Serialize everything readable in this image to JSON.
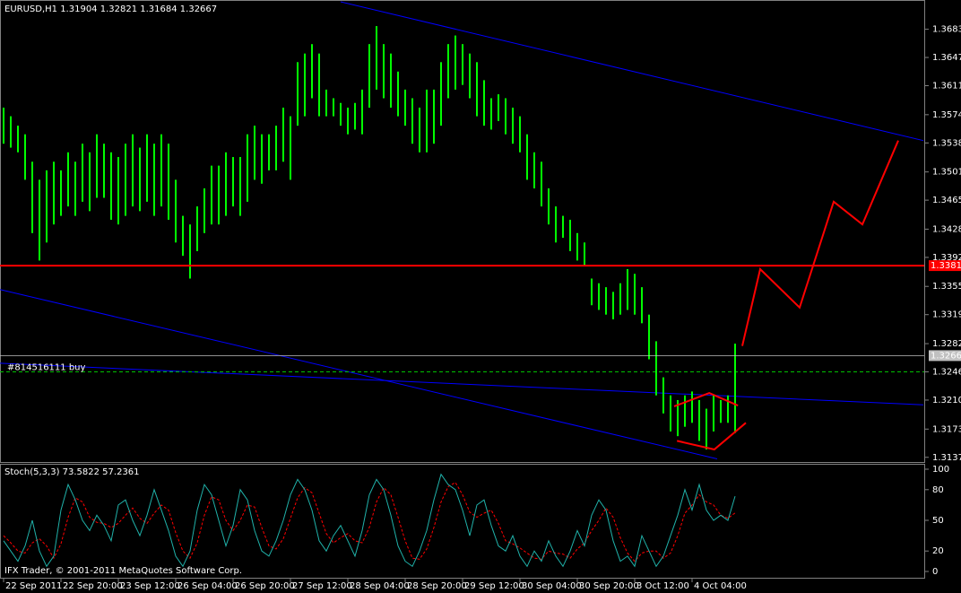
{
  "chart_data": [
    {
      "type": "ohlc",
      "title": "EURUSD,H1  1.31904 1.32821 1.31684 1.32667",
      "color": "#00ff00",
      "categories": [
        "22 Sep 2011",
        null,
        null,
        null,
        null,
        null,
        null,
        null,
        "22 Sep 20:00",
        null,
        null,
        null,
        null,
        null,
        null,
        null,
        "23 Sep 12:00",
        null,
        null,
        null,
        null,
        null,
        null,
        null,
        "26 Sep 04:00",
        null,
        null,
        null,
        null,
        null,
        null,
        null,
        "26 Sep 20:00",
        null,
        null,
        null,
        null,
        null,
        null,
        null,
        "27 Sep 12:00",
        null,
        null,
        null,
        null,
        null,
        null,
        null,
        "28 Sep 04:00",
        null,
        null,
        null,
        null,
        null,
        null,
        null,
        "28 Sep 20:00",
        null,
        null,
        null,
        null,
        null,
        null,
        null,
        "29 Sep 12:00",
        null,
        null,
        null,
        null,
        null,
        null,
        null,
        "30 Sep 04:00",
        null,
        null,
        null,
        null,
        null,
        null,
        null,
        "30 Sep 20:00",
        null,
        null,
        null,
        null,
        null,
        null,
        null,
        "3 Oct 12:00",
        null,
        null,
        null,
        null,
        null,
        null,
        null,
        "4 Oct 04:00",
        null,
        null,
        null,
        null,
        null,
        null
      ],
      "high": [
        1.3583,
        1.3572,
        1.356,
        1.3549,
        1.3514,
        1.3491,
        1.3503,
        1.3514,
        1.3503,
        1.3526,
        1.3514,
        1.3537,
        1.3526,
        1.3549,
        1.3537,
        1.3526,
        1.352,
        1.3537,
        1.3549,
        1.3532,
        1.3549,
        1.3537,
        1.3549,
        1.3537,
        1.3491,
        1.3445,
        1.3434,
        1.3457,
        1.348,
        1.3509,
        1.3509,
        1.3526,
        1.352,
        1.352,
        1.3549,
        1.356,
        1.3549,
        1.3549,
        1.356,
        1.3583,
        1.3572,
        1.3641,
        1.3652,
        1.3664,
        1.3652,
        1.3606,
        1.3595,
        1.3589,
        1.3583,
        1.3589,
        1.3606,
        1.3664,
        1.3687,
        1.3664,
        1.3652,
        1.3629,
        1.3606,
        1.3595,
        1.3583,
        1.3606,
        1.3606,
        1.3641,
        1.3664,
        1.3675,
        1.3664,
        1.3652,
        1.3641,
        1.3618,
        1.3595,
        1.36,
        1.3595,
        1.3583,
        1.3572,
        1.3549,
        1.3526,
        1.3514,
        1.348,
        1.3457,
        1.3445,
        1.344,
        1.3423,
        1.3411,
        1.3365,
        1.3359,
        1.3354,
        1.3348,
        1.3359,
        1.3377,
        1.3371,
        1.3354,
        1.3319,
        1.3285,
        1.3239,
        1.3216,
        1.321,
        1.3216,
        1.3221,
        1.321,
        1.3199,
        1.3216,
        1.321,
        1.3216,
        1.3282
      ],
      "low": [
        1.3537,
        1.3532,
        1.3526,
        1.3491,
        1.3423,
        1.3388,
        1.3411,
        1.3434,
        1.3445,
        1.3457,
        1.3445,
        1.3463,
        1.3451,
        1.3468,
        1.3468,
        1.344,
        1.3434,
        1.3445,
        1.3457,
        1.3451,
        1.3463,
        1.3445,
        1.3457,
        1.344,
        1.3411,
        1.3394,
        1.3365,
        1.34,
        1.3423,
        1.3434,
        1.3434,
        1.3445,
        1.3457,
        1.3445,
        1.3463,
        1.3491,
        1.3486,
        1.3503,
        1.3503,
        1.3514,
        1.3491,
        1.356,
        1.3572,
        1.3595,
        1.3572,
        1.3572,
        1.3572,
        1.356,
        1.3549,
        1.3555,
        1.3549,
        1.3583,
        1.3606,
        1.3595,
        1.3583,
        1.3572,
        1.356,
        1.3537,
        1.3526,
        1.3526,
        1.3537,
        1.356,
        1.3595,
        1.3606,
        1.3612,
        1.3595,
        1.3572,
        1.356,
        1.3555,
        1.3566,
        1.3549,
        1.3537,
        1.3526,
        1.3491,
        1.348,
        1.3457,
        1.3434,
        1.3411,
        1.3417,
        1.34,
        1.3388,
        1.3382,
        1.3331,
        1.3325,
        1.3319,
        1.3313,
        1.3319,
        1.3325,
        1.3319,
        1.3308,
        1.3262,
        1.3216,
        1.3193,
        1.317,
        1.3164,
        1.3176,
        1.3181,
        1.3158,
        1.3147,
        1.317,
        1.3181,
        1.3181,
        1.3168
      ],
      "xlim": [
        -0.5,
        128.25
      ],
      "ylim": [
        1.3131,
        1.3718
      ],
      "yticks": [
        {
          "value": 1.3683,
          "label": "1.36830"
        },
        {
          "value": 1.3647,
          "label": "1.36470"
        },
        {
          "value": 1.3611,
          "label": "1.36110"
        },
        {
          "value": 1.3574,
          "label": "1.35740"
        },
        {
          "value": 1.3538,
          "label": "1.35380"
        },
        {
          "value": 1.3501,
          "label": "1.35010"
        },
        {
          "value": 1.3465,
          "label": "1.34650"
        },
        {
          "value": 1.3428,
          "label": "1.34280"
        },
        {
          "value": 1.3392,
          "label": "1.33920"
        },
        {
          "value": 1.3355,
          "label": "1.33550"
        },
        {
          "value": 1.3319,
          "label": "1.33190"
        },
        {
          "value": 1.3282,
          "label": "1.32820"
        },
        {
          "value": 1.3246,
          "label": "1.32460"
        },
        {
          "value": 1.321,
          "label": "1.32100"
        },
        {
          "value": 1.3173,
          "label": "1.31730"
        },
        {
          "value": 1.3137,
          "label": "1.31370"
        }
      ],
      "levels": [
        {
          "value": 1.33815,
          "label": "1.33815",
          "color": "#ff0000"
        },
        {
          "value": 1.32667,
          "label": "1.32667",
          "color": "#c0c0c0"
        }
      ],
      "order": {
        "value": 1.3246,
        "text": "#814516111 buy",
        "color": "#00c000"
      },
      "trendlines": [
        {
          "x": [
            47,
            128.25
          ],
          "values": [
            1.3718,
            1.3541
          ],
          "color": "#0000ff"
        },
        {
          "x": [
            -0.5,
            99.5
          ],
          "values": [
            1.3351,
            1.3135
          ],
          "color": "#0000ff"
        },
        {
          "x": [
            -0.5,
            128.25
          ],
          "values": [
            1.3257,
            1.3204
          ],
          "color": "#0000ff"
        }
      ],
      "drawings": [
        {
          "x": [
            103,
            105.5,
            111,
            115.75,
            119.75,
            124.75
          ],
          "values": [
            1.3279,
            1.3377,
            1.3328,
            1.3463,
            1.3434,
            1.3541
          ],
          "color": "#ff0000"
        },
        {
          "x": [
            93.5,
            98.4,
            102.4
          ],
          "values": [
            1.3202,
            1.3219,
            1.3203
          ],
          "color": "#ff0000"
        },
        {
          "x": [
            93.9,
            99.1,
            103.5
          ],
          "values": [
            1.3158,
            1.3147,
            1.3181
          ],
          "color": "#ff0000"
        }
      ]
    },
    {
      "type": "line",
      "title": "Stoch(5,3,3) 73.5822 57.2361",
      "ylim": [
        0,
        100
      ],
      "yticks": [
        100,
        80,
        50,
        20,
        0
      ],
      "series": [
        {
          "color": "#20b2aa",
          "values": [
            30,
            20,
            10,
            25,
            50,
            20,
            5,
            15,
            60,
            85,
            70,
            50,
            40,
            55,
            45,
            30,
            65,
            70,
            50,
            35,
            55,
            80,
            60,
            40,
            15,
            5,
            20,
            60,
            85,
            75,
            50,
            25,
            45,
            80,
            70,
            40,
            20,
            15,
            30,
            50,
            75,
            90,
            80,
            60,
            30,
            20,
            35,
            45,
            30,
            15,
            40,
            75,
            90,
            80,
            55,
            25,
            10,
            5,
            20,
            40,
            70,
            95,
            85,
            80,
            60,
            35,
            65,
            70,
            45,
            25,
            20,
            35,
            15,
            5,
            20,
            10,
            30,
            15,
            5,
            20,
            40,
            25,
            55,
            70,
            60,
            30,
            10,
            15,
            5,
            35,
            20,
            5,
            15,
            35,
            55,
            80,
            60,
            85,
            60,
            50,
            55,
            50,
            73.5822
          ]
        },
        {
          "color": "#ff0000",
          "dash": true,
          "values": [
            35,
            28,
            20,
            18,
            28,
            32,
            25,
            13,
            27,
            53,
            72,
            68,
            53,
            48,
            47,
            43,
            47,
            55,
            62,
            52,
            47,
            57,
            65,
            60,
            38,
            20,
            13,
            28,
            55,
            73,
            70,
            50,
            40,
            50,
            65,
            63,
            43,
            25,
            22,
            32,
            52,
            72,
            82,
            77,
            57,
            37,
            28,
            33,
            37,
            30,
            28,
            43,
            68,
            82,
            75,
            53,
            30,
            13,
            12,
            22,
            43,
            68,
            83,
            87,
            75,
            58,
            53,
            57,
            60,
            47,
            30,
            27,
            23,
            18,
            13,
            12,
            20,
            18,
            17,
            13,
            22,
            28,
            40,
            50,
            62,
            53,
            33,
            18,
            10,
            18,
            20,
            20,
            13,
            18,
            35,
            57,
            65,
            75,
            68,
            65,
            55,
            52,
            57.2361
          ]
        }
      ]
    }
  ],
  "copyright": "IFX Trader, © 2001-2011 MetaQuotes Software Corp."
}
